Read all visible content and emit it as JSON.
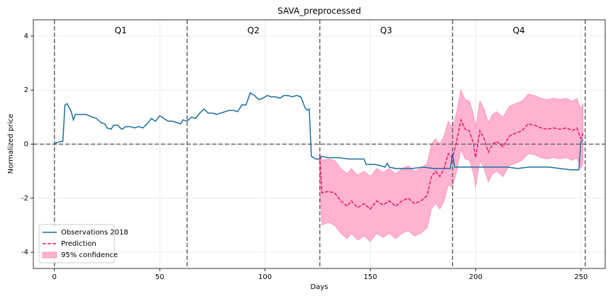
{
  "chart_data": {
    "type": "line",
    "title": "SAVA_preprocessed",
    "xlabel": "Days",
    "ylabel": "Normalized price",
    "xlim": [
      -10,
      261.5
    ],
    "ylim": [
      -4.6,
      4.6
    ],
    "xticks": [
      0,
      50,
      100,
      150,
      200,
      250
    ],
    "yticks": [
      -4,
      -2,
      0,
      2,
      4
    ],
    "grid": true,
    "legend": "lower left",
    "vlines": [
      0,
      63,
      126,
      189,
      252
    ],
    "hline": 0,
    "annotations": [
      {
        "text": "Q1",
        "x": 31.5,
        "y": 4.2
      },
      {
        "text": "Q2",
        "x": 94.5,
        "y": 4.2
      },
      {
        "text": "Q3",
        "x": 157.5,
        "y": 4.2
      },
      {
        "text": "Q4",
        "x": 220.5,
        "y": 4.2
      }
    ],
    "series": [
      {
        "name": "Observations 2018",
        "color": "#1a6f9c",
        "x": [
          0,
          1,
          3,
          4,
          5,
          6,
          8,
          9,
          10,
          12,
          15,
          18,
          20,
          22,
          24,
          25,
          27,
          28,
          30,
          32,
          34,
          36,
          38,
          40,
          42,
          44,
          46,
          48,
          50,
          52,
          54,
          56,
          58,
          60,
          61,
          63,
          65,
          67,
          69,
          71,
          73,
          75,
          77,
          79,
          81,
          83,
          85,
          87,
          89,
          91,
          93,
          95,
          97,
          99,
          101,
          103,
          105,
          107,
          109,
          111,
          113,
          115,
          117,
          119,
          120,
          121,
          122,
          124,
          126,
          127,
          130,
          135,
          140,
          145,
          147,
          148,
          150,
          152,
          155,
          157,
          158,
          159,
          162,
          165,
          170,
          175,
          180,
          185,
          188,
          189,
          190,
          195,
          200,
          205,
          210,
          215,
          220,
          225,
          230,
          235,
          240,
          245,
          249,
          250,
          251
        ],
        "values": [
          0.0,
          0.05,
          0.1,
          0.1,
          1.45,
          1.5,
          1.2,
          0.9,
          1.1,
          1.1,
          1.1,
          1.0,
          0.95,
          0.8,
          0.75,
          0.6,
          0.55,
          0.7,
          0.7,
          0.55,
          0.65,
          0.65,
          0.6,
          0.65,
          0.6,
          0.75,
          0.95,
          0.85,
          1.05,
          0.95,
          0.85,
          0.85,
          0.8,
          0.75,
          0.9,
          0.85,
          1.0,
          0.95,
          1.15,
          1.3,
          1.15,
          1.15,
          1.1,
          1.15,
          1.2,
          1.25,
          1.25,
          1.2,
          1.45,
          1.45,
          1.9,
          1.8,
          1.65,
          1.7,
          1.8,
          1.75,
          1.75,
          1.7,
          1.8,
          1.8,
          1.75,
          1.8,
          1.75,
          1.35,
          1.25,
          1.3,
          -0.45,
          -0.55,
          -0.55,
          -0.45,
          -0.5,
          -0.5,
          -0.55,
          -0.55,
          -0.55,
          -0.75,
          -0.75,
          -0.75,
          -0.8,
          -0.85,
          -0.7,
          -0.85,
          -0.9,
          -0.9,
          -0.9,
          -0.85,
          -0.9,
          -0.9,
          -0.9,
          -0.35,
          -0.85,
          -0.85,
          -0.85,
          -0.85,
          -0.85,
          -0.85,
          -0.9,
          -0.85,
          -0.85,
          -0.85,
          -0.9,
          -0.95,
          -0.95,
          0.1,
          0.15
        ]
      },
      {
        "name": "Prediction",
        "color": "#e8176a",
        "dashed": true,
        "x": [
          126,
          127,
          130,
          133,
          136,
          139,
          141,
          144,
          147,
          150,
          153,
          156,
          159,
          162,
          165,
          168,
          171,
          174,
          177,
          179,
          181,
          183,
          185,
          187,
          189,
          191,
          193,
          195,
          197,
          199,
          200,
          202,
          204,
          206,
          208,
          210,
          213,
          216,
          219,
          222,
          225,
          228,
          231,
          234,
          237,
          240,
          243,
          246,
          248,
          250,
          251
        ],
        "values": [
          -0.45,
          -1.8,
          -1.75,
          -1.8,
          -2.1,
          -2.3,
          -2.1,
          -2.35,
          -2.2,
          -2.4,
          -2.1,
          -2.25,
          -2.1,
          -2.3,
          -2.1,
          -2.0,
          -2.2,
          -2.1,
          -1.9,
          -1.2,
          -1.0,
          -1.2,
          -0.9,
          -0.35,
          -0.5,
          0.1,
          0.9,
          0.55,
          0.5,
          0.0,
          -0.5,
          0.5,
          0.2,
          -0.3,
          0.0,
          0.1,
          -0.1,
          0.3,
          0.4,
          0.5,
          0.75,
          0.7,
          0.6,
          0.55,
          0.6,
          0.55,
          0.6,
          0.5,
          0.6,
          0.2,
          0.4
        ]
      }
    ],
    "band": {
      "name": "95% confidence",
      "color": "#ffb3d1",
      "edge": "#f07aa8",
      "x": [
        126,
        127,
        130,
        133,
        136,
        139,
        141,
        144,
        147,
        150,
        153,
        156,
        159,
        162,
        165,
        168,
        171,
        174,
        177,
        179,
        181,
        183,
        185,
        187,
        189,
        191,
        193,
        195,
        197,
        199,
        200,
        202,
        204,
        206,
        208,
        210,
        213,
        216,
        219,
        222,
        225,
        228,
        231,
        234,
        237,
        240,
        243,
        246,
        248,
        250,
        251
      ],
      "lower": [
        -1.6,
        -3.0,
        -2.9,
        -3.0,
        -3.3,
        -3.5,
        -3.3,
        -3.55,
        -3.4,
        -3.6,
        -3.3,
        -3.45,
        -3.3,
        -3.5,
        -3.3,
        -3.2,
        -3.4,
        -3.3,
        -3.1,
        -2.4,
        -2.2,
        -2.4,
        -2.1,
        -1.5,
        -1.6,
        -1.0,
        -0.2,
        -0.55,
        -0.6,
        -1.1,
        -1.6,
        -0.6,
        -0.9,
        -1.4,
        -1.1,
        -1.0,
        -1.2,
        -0.8,
        -0.7,
        -0.6,
        -0.35,
        -0.4,
        -0.5,
        -0.55,
        -0.5,
        -0.55,
        -0.5,
        -0.6,
        -0.5,
        -0.9,
        -0.7
      ],
      "upper": [
        -0.3,
        -0.6,
        -0.55,
        -0.6,
        -0.9,
        -1.1,
        -0.9,
        -1.15,
        -1.0,
        -1.2,
        -0.9,
        -1.05,
        -0.9,
        -1.1,
        -0.9,
        -0.8,
        -1.0,
        -0.9,
        -0.7,
        0.0,
        0.2,
        0.0,
        0.3,
        0.85,
        0.6,
        1.2,
        2.0,
        1.65,
        1.6,
        1.1,
        0.6,
        1.6,
        1.3,
        0.8,
        1.1,
        1.2,
        1.0,
        1.4,
        1.5,
        1.6,
        1.85,
        1.8,
        1.7,
        1.65,
        1.7,
        1.65,
        1.7,
        1.6,
        1.7,
        1.3,
        1.5
      ]
    }
  }
}
